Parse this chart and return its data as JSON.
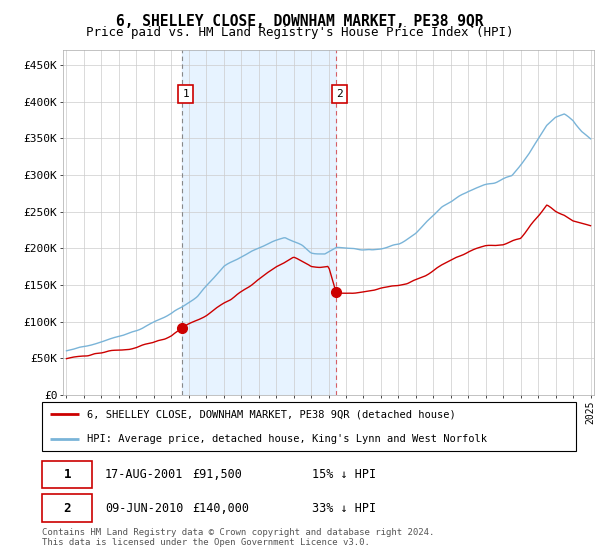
{
  "title": "6, SHELLEY CLOSE, DOWNHAM MARKET, PE38 9QR",
  "subtitle": "Price paid vs. HM Land Registry's House Price Index (HPI)",
  "title_fontsize": 10.5,
  "subtitle_fontsize": 9,
  "hpi_color": "#7ab4d8",
  "price_color": "#cc0000",
  "shade_color": "#ddeeff",
  "ylim": [
    0,
    470000
  ],
  "yticks": [
    0,
    50000,
    100000,
    150000,
    200000,
    250000,
    300000,
    350000,
    400000,
    450000
  ],
  "ytick_labels": [
    "£0",
    "£50K",
    "£100K",
    "£150K",
    "£200K",
    "£250K",
    "£300K",
    "£350K",
    "£400K",
    "£450K"
  ],
  "legend_label_red": "6, SHELLEY CLOSE, DOWNHAM MARKET, PE38 9QR (detached house)",
  "legend_label_blue": "HPI: Average price, detached house, King's Lynn and West Norfolk",
  "table_row1": [
    "1",
    "17-AUG-2001",
    "£91,500",
    "15% ↓ HPI"
  ],
  "table_row2": [
    "2",
    "09-JUN-2010",
    "£140,000",
    "33% ↓ HPI"
  ],
  "footer": "Contains HM Land Registry data © Crown copyright and database right 2024.\nThis data is licensed under the Open Government Licence v3.0.",
  "sale1_x": 2001.62,
  "sale1_y": 91500,
  "sale2_x": 2010.44,
  "sale2_y": 140000,
  "xmin": 1995,
  "xmax": 2025
}
